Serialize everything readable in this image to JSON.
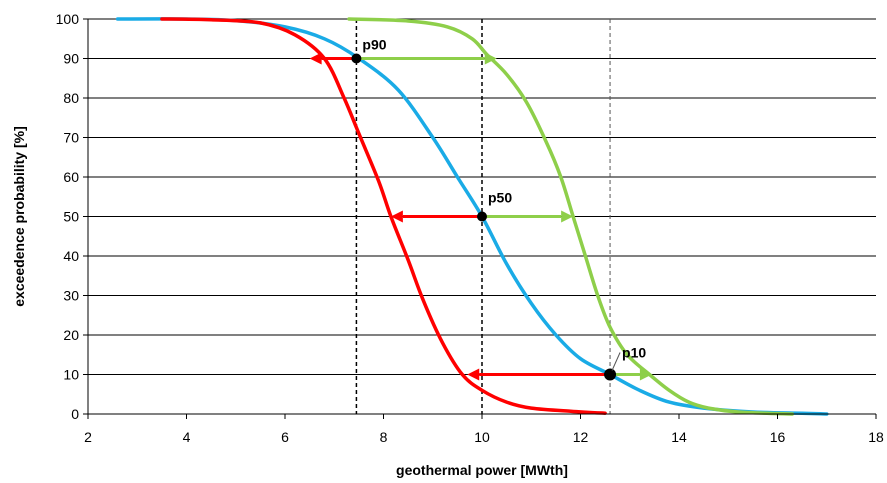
{
  "chart_data": {
    "type": "line",
    "title": "",
    "xlabel": "geothermal power [MWth]",
    "ylabel": "exceedence probability [%]",
    "xlim": [
      2,
      18
    ],
    "ylim": [
      0,
      100
    ],
    "xticks": [
      2,
      4,
      6,
      8,
      10,
      12,
      14,
      16,
      18
    ],
    "yticks": [
      0,
      10,
      20,
      30,
      40,
      50,
      60,
      70,
      80,
      90,
      100
    ],
    "grid": "horizontal",
    "legend": "none",
    "series": [
      {
        "color": "#1aabe6",
        "points": [
          [
            2.6,
            100
          ],
          [
            4,
            100
          ],
          [
            5,
            99.6
          ],
          [
            6,
            98
          ],
          [
            6.8,
            95
          ],
          [
            7.5,
            90
          ],
          [
            8.3,
            82
          ],
          [
            9,
            70
          ],
          [
            9.5,
            60
          ],
          [
            10,
            50
          ],
          [
            10.5,
            38
          ],
          [
            11,
            28
          ],
          [
            11.5,
            20
          ],
          [
            12,
            14
          ],
          [
            12.6,
            10
          ],
          [
            13.2,
            6
          ],
          [
            13.8,
            3
          ],
          [
            14.5,
            1.5
          ],
          [
            15.5,
            0.5
          ],
          [
            16.5,
            0.2
          ],
          [
            17,
            0
          ]
        ]
      },
      {
        "color": "#ff0000",
        "points": [
          [
            3.5,
            100
          ],
          [
            4.5,
            99.8
          ],
          [
            5.5,
            99
          ],
          [
            6.2,
            96
          ],
          [
            6.8,
            90
          ],
          [
            7.2,
            80
          ],
          [
            7.5,
            71
          ],
          [
            7.9,
            59
          ],
          [
            8.15,
            50
          ],
          [
            8.5,
            39
          ],
          [
            8.8,
            29
          ],
          [
            9.2,
            18
          ],
          [
            9.6,
            10
          ],
          [
            10,
            6
          ],
          [
            10.5,
            3
          ],
          [
            11,
            1.5
          ],
          [
            11.8,
            0.7
          ],
          [
            12.5,
            0.2
          ]
        ]
      },
      {
        "color": "#8ecf4a",
        "points": [
          [
            7.3,
            100
          ],
          [
            8.5,
            99.5
          ],
          [
            9.3,
            98
          ],
          [
            9.8,
            95
          ],
          [
            10.1,
            91
          ],
          [
            10.5,
            86
          ],
          [
            10.9,
            79
          ],
          [
            11.3,
            69
          ],
          [
            11.6,
            60
          ],
          [
            11.85,
            50
          ],
          [
            12.1,
            40
          ],
          [
            12.35,
            30
          ],
          [
            12.6,
            22
          ],
          [
            12.95,
            15
          ],
          [
            13.4,
            10
          ],
          [
            13.8,
            6
          ],
          [
            14.2,
            3
          ],
          [
            14.6,
            1.5
          ],
          [
            15.2,
            0.5
          ],
          [
            16.3,
            0
          ]
        ]
      }
    ],
    "reference_lines": {
      "x": [
        7.45,
        10,
        12.6
      ],
      "styles": [
        "dashed-black",
        "dashed-black",
        "dashed-gray"
      ]
    },
    "markers": [
      {
        "label": "p90",
        "x": 7.45,
        "y": 90
      },
      {
        "label": "p50",
        "x": 10,
        "y": 50
      },
      {
        "label": "p10",
        "x": 12.6,
        "y": 10
      }
    ],
    "arrows": [
      {
        "color": "#ff0000",
        "from": [
          7.45,
          90
        ],
        "to": [
          6.5,
          90
        ]
      },
      {
        "color": "#8ecf4a",
        "from": [
          7.45,
          90
        ],
        "to": [
          10.3,
          90
        ]
      },
      {
        "color": "#ff0000",
        "from": [
          10,
          50
        ],
        "to": [
          8.15,
          50
        ]
      },
      {
        "color": "#8ecf4a",
        "from": [
          10,
          50
        ],
        "to": [
          11.85,
          50
        ]
      },
      {
        "color": "#ff0000",
        "from": [
          12.6,
          10
        ],
        "to": [
          9.7,
          10
        ]
      },
      {
        "color": "#8ecf4a",
        "from": [
          12.6,
          10
        ],
        "to": [
          13.45,
          10
        ]
      }
    ]
  }
}
